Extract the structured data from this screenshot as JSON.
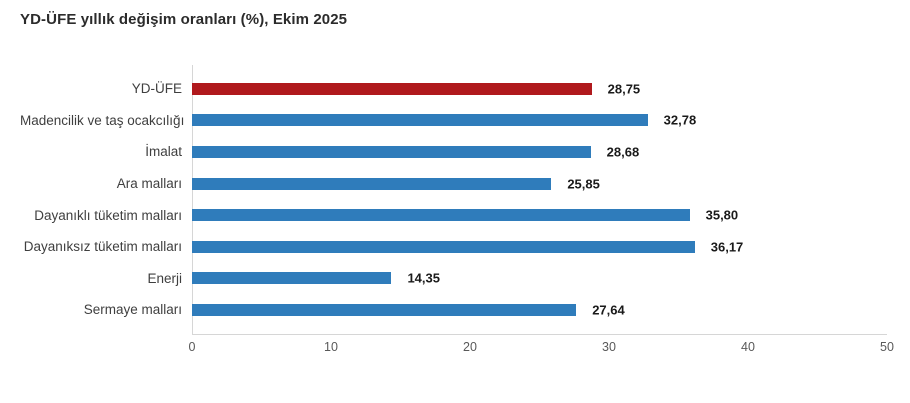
{
  "chart_data": {
    "type": "bar",
    "orientation": "horizontal",
    "title": "YD-ÜFE yıllık değişim oranları (%), Ekim 2025",
    "categories": [
      "YD-ÜFE",
      "Madencilik ve taş ocakcılığı",
      "İmalat",
      "Ara malları",
      "Dayanıklı tüketim malları",
      "Dayanıksız tüketim malları",
      "Enerji",
      "Sermaye malları"
    ],
    "values": [
      28.75,
      32.78,
      28.68,
      25.85,
      35.8,
      36.17,
      14.35,
      27.64
    ],
    "value_labels": [
      "28,75",
      "32,78",
      "28,68",
      "25,85",
      "35,80",
      "36,17",
      "14,35",
      "27,64"
    ],
    "highlight_index": 0,
    "bar_color": "#2f7cbb",
    "highlight_color": "#b0191d",
    "xlabel": "",
    "ylabel": "",
    "xlim": [
      0,
      50
    ],
    "x_ticks": [
      0,
      10,
      20,
      30,
      40,
      50
    ],
    "grid": false,
    "legend": false,
    "axis_line_color": "#d6d6d6"
  }
}
